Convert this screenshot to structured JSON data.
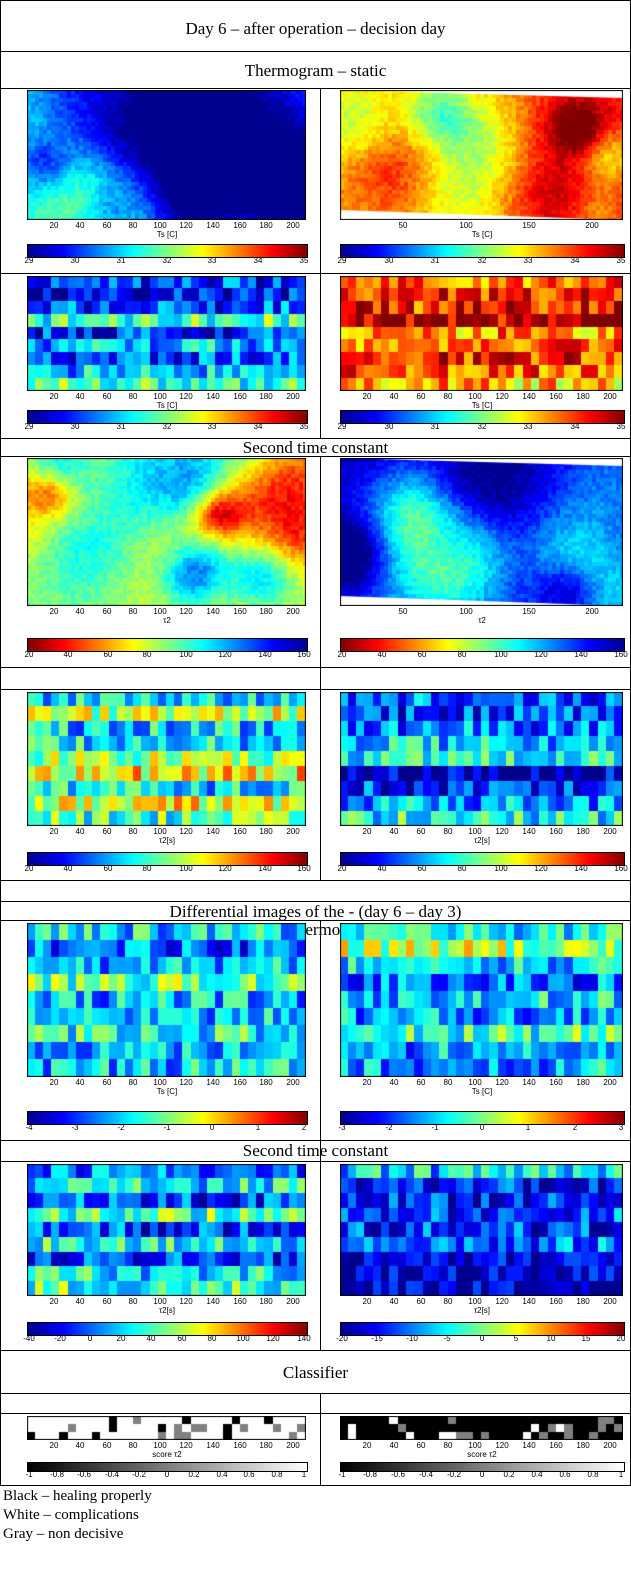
{
  "headers": {
    "title": "Day 6 – after operation – decision day",
    "thermogram_static": "Thermogram – static",
    "second_time_constant_1": "Second time constant",
    "differential": "Differential images of the - (day 6 – day 3)",
    "static_thermograms": "Static thermograms",
    "second_time_constant_2": "Second time constant",
    "classifier": "Classifier"
  },
  "colors": {
    "jet": [
      "#00008f",
      "#0000ff",
      "#0080ff",
      "#00ffff",
      "#80ff80",
      "#ffff00",
      "#ff8000",
      "#ff0000",
      "#800000"
    ],
    "gray_scale": [
      "#000000",
      "#ffffff"
    ]
  },
  "panels": {
    "thermo_left": {
      "xticks": [
        "20",
        "40",
        "60",
        "80",
        "100",
        "120",
        "140",
        "160",
        "180",
        "200"
      ],
      "xlabel": "Ts [C]",
      "cticks": [
        "29",
        "30",
        "31",
        "32",
        "33",
        "34",
        "35"
      ],
      "level": 0.28
    },
    "thermo_right": {
      "xticks": [
        "50",
        "100",
        "150",
        "200"
      ],
      "xlabel": "Ts [C]",
      "cticks": [
        "29",
        "30",
        "31",
        "32",
        "33",
        "34",
        "35"
      ],
      "level": 0.72
    },
    "block_left": {
      "xticks": [
        "20",
        "40",
        "60",
        "80",
        "100",
        "120",
        "140",
        "160",
        "180",
        "200"
      ],
      "xlabel": "Ts [C]",
      "cticks": [
        "29",
        "30",
        "31",
        "32",
        "33",
        "34",
        "35"
      ],
      "level": 0.27
    },
    "block_right": {
      "xticks": [
        "20",
        "40",
        "60",
        "80",
        "100",
        "120",
        "140",
        "160",
        "180",
        "200"
      ],
      "xlabel": "Ts [C]",
      "cticks": [
        "29",
        "30",
        "31",
        "32",
        "33",
        "34",
        "35"
      ],
      "level": 0.78
    },
    "tau_left": {
      "xticks": [
        "20",
        "40",
        "60",
        "80",
        "100",
        "120",
        "140",
        "160",
        "180",
        "200"
      ],
      "xlabel": "τ2",
      "cticks": [
        "20",
        "40",
        "60",
        "80",
        "100",
        "120",
        "140",
        "160"
      ],
      "level": 0.45
    },
    "tau_right": {
      "xticks": [
        "50",
        "100",
        "150",
        "200"
      ],
      "xlabel": "τ2",
      "cticks": [
        "20",
        "40",
        "60",
        "80",
        "100",
        "120",
        "140",
        "160"
      ],
      "level": 0.9
    },
    "tau_block_left": {
      "xticks": [
        "20",
        "40",
        "60",
        "80",
        "100",
        "120",
        "140",
        "160",
        "180",
        "200"
      ],
      "xlabel": "τ2[s]",
      "cticks": [
        "20",
        "40",
        "60",
        "80",
        "100",
        "120",
        "140",
        "160"
      ],
      "level": 0.5
    },
    "tau_block_right": {
      "xticks": [
        "20",
        "40",
        "60",
        "80",
        "100",
        "120",
        "140",
        "160",
        "180",
        "200"
      ],
      "xlabel": "τ2[s]",
      "cticks": [
        "20",
        "40",
        "60",
        "80",
        "100",
        "120",
        "140",
        "160"
      ],
      "level": 0.22
    },
    "diff_left": {
      "xticks": [
        "20",
        "40",
        "60",
        "80",
        "100",
        "120",
        "140",
        "160",
        "180",
        "200"
      ],
      "xlabel": "Ts [C]",
      "cticks": [
        "-4",
        "-3",
        "-2",
        "-1",
        "0",
        "1",
        "2"
      ],
      "level": 0.38
    },
    "diff_right": {
      "xticks": [
        "20",
        "40",
        "60",
        "80",
        "100",
        "120",
        "140",
        "160",
        "180",
        "200"
      ],
      "xlabel": "Ts [C]",
      "cticks": [
        "-3",
        "-2",
        "-1",
        "0",
        "1",
        "2",
        "3"
      ],
      "level": 0.4
    },
    "diff_tau_left": {
      "xticks": [
        "20",
        "40",
        "60",
        "80",
        "100",
        "120",
        "140",
        "160",
        "180",
        "200"
      ],
      "xlabel": "τ2[s]",
      "cticks": [
        "-40",
        "-20",
        "0",
        "20",
        "40",
        "60",
        "80",
        "100",
        "120",
        "140"
      ],
      "level": 0.3
    },
    "diff_tau_right": {
      "xticks": [
        "20",
        "40",
        "60",
        "80",
        "100",
        "120",
        "140",
        "160",
        "180",
        "200"
      ],
      "xlabel": "τ2[s]",
      "cticks": [
        "-20",
        "-15",
        "-10",
        "-5",
        "0",
        "5",
        "10",
        "15",
        "20"
      ],
      "level": 0.2
    },
    "class_left": {
      "xticks": [
        "20",
        "40",
        "60",
        "80",
        "100",
        "120",
        "140",
        "160",
        "180",
        "200"
      ],
      "xlabel": "score τ2",
      "cticks": [
        "-1",
        "-0.8",
        "-0.6",
        "-0.4",
        "-0.2",
        "0",
        "0.2",
        "0.4",
        "0.6",
        "0.8",
        "1"
      ],
      "level": 0.75
    },
    "class_right": {
      "xticks": [
        "20",
        "40",
        "60",
        "80",
        "100",
        "120",
        "140",
        "160",
        "180",
        "200"
      ],
      "xlabel": "score τ2",
      "cticks": [
        "-1",
        "-0.8",
        "-0.6",
        "-0.4",
        "-0.2",
        "0",
        "0.2",
        "0.4",
        "0.6",
        "0.8",
        "1"
      ],
      "level": 0.1
    }
  },
  "legend": {
    "black": "Black – healing properly",
    "white": "White – complications",
    "gray": "Gray – non decisive"
  }
}
